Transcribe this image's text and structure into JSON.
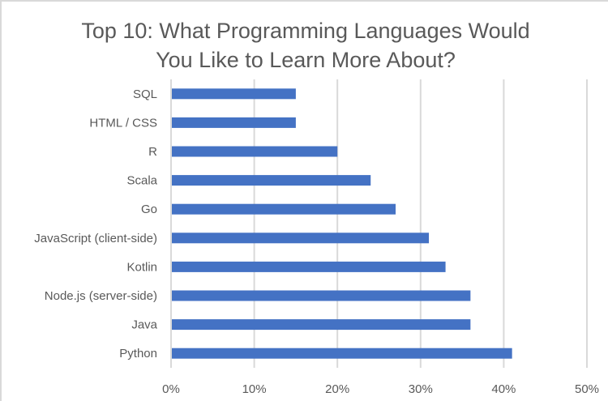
{
  "chart_data": {
    "type": "bar",
    "orientation": "horizontal",
    "title_lines": [
      "Top 10: What Programming Languages Would",
      "You Like to Learn More About?"
    ],
    "title": "Top 10: What Programming Languages Would You Like to Learn More About?",
    "categories": [
      "SQL",
      "HTML / CSS",
      "R",
      "Scala",
      "Go",
      "JavaScript (client-side)",
      "Kotlin",
      "Node.js (server-side)",
      "Java",
      "Python"
    ],
    "values": [
      15,
      15,
      20,
      24,
      27,
      31,
      33,
      36,
      36,
      41
    ],
    "value_unit": "%",
    "xlim": [
      0,
      50
    ],
    "xticks": [
      0,
      10,
      20,
      30,
      40,
      50
    ],
    "xtick_labels": [
      "0%",
      "10%",
      "20%",
      "30%",
      "40%",
      "50%"
    ],
    "xlabel": "",
    "ylabel": "",
    "grid": "vertical major gridlines",
    "legend": "none",
    "colors": {
      "bar": "#4472C4",
      "grid": "#d9d9d9",
      "text": "#595959"
    }
  }
}
